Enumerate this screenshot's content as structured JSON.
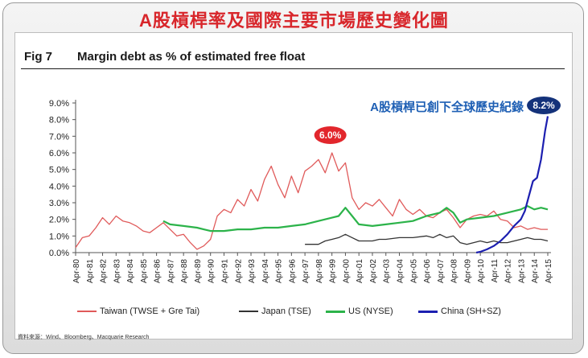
{
  "header": {
    "title": "A股槓桿率及國際主要市場歷史變化圖"
  },
  "figure": {
    "label": "Fig 7",
    "title": "Margin debt as % of estimated free float"
  },
  "source": "資料來源：Wind、Bloomberg、Macquarie Research",
  "annotations": {
    "china_note": "A股槓桿已創下全球歷史紀錄",
    "taiwan_peak": "6.0%",
    "china_peak": "8.2%"
  },
  "colors": {
    "taiwan": "#e05a5a",
    "japan": "#333333",
    "us": "#2cb34a",
    "china": "#1c1fb0",
    "title_red": "#d8262b",
    "note_blue": "#1e5fb4"
  },
  "chart_data": {
    "type": "line",
    "title": "Margin debt as % of estimated free float",
    "ylim": [
      0,
      9
    ],
    "yticks": [
      "0.0%",
      "1.0%",
      "2.0%",
      "3.0%",
      "4.0%",
      "5.0%",
      "6.0%",
      "7.0%",
      "8.0%",
      "9.0%"
    ],
    "x_categories": [
      "Apr-80",
      "Apr-81",
      "Apr-82",
      "Apr-83",
      "Apr-84",
      "Apr-85",
      "Apr-86",
      "Apr-87",
      "Apr-88",
      "Apr-89",
      "Apr-90",
      "Apr-91",
      "Apr-92",
      "Apr-93",
      "Apr-94",
      "Apr-95",
      "Apr-96",
      "Apr-97",
      "Apr-98",
      "Apr-99",
      "Apr-00",
      "Apr-01",
      "Apr-02",
      "Apr-03",
      "Apr-04",
      "Apr-05",
      "Apr-06",
      "Apr-07",
      "Apr-08",
      "Apr-09",
      "Apr-10",
      "Apr-11",
      "Apr-12",
      "Apr-13",
      "Apr-14",
      "Apr-15"
    ],
    "legend_position": "bottom",
    "series": [
      {
        "name": "Taiwan (TWSE + Gre Tai)",
        "color": "#e05a5a",
        "points": [
          [
            0,
            0.3
          ],
          [
            0.5,
            0.9
          ],
          [
            1,
            1.0
          ],
          [
            1.5,
            1.5
          ],
          [
            2,
            2.1
          ],
          [
            2.5,
            1.7
          ],
          [
            3,
            2.2
          ],
          [
            3.5,
            1.9
          ],
          [
            4,
            1.8
          ],
          [
            4.5,
            1.6
          ],
          [
            5,
            1.3
          ],
          [
            5.5,
            1.2
          ],
          [
            6,
            1.5
          ],
          [
            6.5,
            1.8
          ],
          [
            7,
            1.4
          ],
          [
            7.5,
            1.0
          ],
          [
            8,
            1.1
          ],
          [
            8.5,
            0.6
          ],
          [
            9,
            0.2
          ],
          [
            9.5,
            0.4
          ],
          [
            10,
            0.8
          ],
          [
            10.5,
            2.2
          ],
          [
            11,
            2.6
          ],
          [
            11.5,
            2.4
          ],
          [
            12,
            3.2
          ],
          [
            12.5,
            2.8
          ],
          [
            13,
            3.8
          ],
          [
            13.5,
            3.1
          ],
          [
            14,
            4.4
          ],
          [
            14.5,
            5.2
          ],
          [
            15,
            4.1
          ],
          [
            15.5,
            3.3
          ],
          [
            16,
            4.6
          ],
          [
            16.5,
            3.6
          ],
          [
            17,
            4.9
          ],
          [
            17.5,
            5.2
          ],
          [
            18,
            5.6
          ],
          [
            18.5,
            4.8
          ],
          [
            19,
            6.0
          ],
          [
            19.5,
            4.9
          ],
          [
            20,
            5.4
          ],
          [
            20.5,
            3.3
          ],
          [
            21,
            2.6
          ],
          [
            21.5,
            3.0
          ],
          [
            22,
            2.8
          ],
          [
            22.5,
            3.2
          ],
          [
            23,
            2.7
          ],
          [
            23.5,
            2.2
          ],
          [
            24,
            3.2
          ],
          [
            24.5,
            2.6
          ],
          [
            25,
            2.3
          ],
          [
            25.5,
            2.6
          ],
          [
            26,
            2.2
          ],
          [
            26.5,
            2.1
          ],
          [
            27,
            2.4
          ],
          [
            27.5,
            2.6
          ],
          [
            28,
            2.1
          ],
          [
            28.5,
            1.5
          ],
          [
            29,
            2.0
          ],
          [
            29.5,
            2.2
          ],
          [
            30,
            2.3
          ],
          [
            30.5,
            2.2
          ],
          [
            31,
            2.5
          ],
          [
            31.5,
            2.0
          ],
          [
            32,
            1.9
          ],
          [
            32.5,
            1.5
          ],
          [
            33,
            1.6
          ],
          [
            33.5,
            1.4
          ],
          [
            34,
            1.5
          ],
          [
            34.5,
            1.4
          ],
          [
            35,
            1.4
          ]
        ]
      },
      {
        "name": "Japan (TSE)",
        "color": "#333333",
        "points": [
          [
            17,
            0.5
          ],
          [
            18,
            0.5
          ],
          [
            18.5,
            0.7
          ],
          [
            19,
            0.8
          ],
          [
            19.5,
            0.9
          ],
          [
            20,
            1.1
          ],
          [
            20.5,
            0.9
          ],
          [
            21,
            0.7
          ],
          [
            22,
            0.7
          ],
          [
            22.5,
            0.8
          ],
          [
            23,
            0.8
          ],
          [
            24,
            0.9
          ],
          [
            25,
            0.9
          ],
          [
            26,
            1.0
          ],
          [
            26.5,
            0.9
          ],
          [
            27,
            1.1
          ],
          [
            27.5,
            0.9
          ],
          [
            28,
            1.0
          ],
          [
            28.5,
            0.6
          ],
          [
            29,
            0.5
          ],
          [
            29.5,
            0.6
          ],
          [
            30,
            0.7
          ],
          [
            30.5,
            0.6
          ],
          [
            31,
            0.7
          ],
          [
            31.5,
            0.6
          ],
          [
            32,
            0.6
          ],
          [
            33,
            0.8
          ],
          [
            33.5,
            0.9
          ],
          [
            34,
            0.8
          ],
          [
            34.5,
            0.8
          ],
          [
            35,
            0.7
          ]
        ]
      },
      {
        "name": "US (NYSE)",
        "color": "#2cb34a",
        "points": [
          [
            6.5,
            1.9
          ],
          [
            7,
            1.7
          ],
          [
            8,
            1.6
          ],
          [
            9,
            1.5
          ],
          [
            10,
            1.3
          ],
          [
            11,
            1.3
          ],
          [
            12,
            1.4
          ],
          [
            13,
            1.4
          ],
          [
            14,
            1.5
          ],
          [
            15,
            1.5
          ],
          [
            16,
            1.6
          ],
          [
            17,
            1.7
          ],
          [
            18,
            1.9
          ],
          [
            19,
            2.1
          ],
          [
            19.5,
            2.2
          ],
          [
            20,
            2.7
          ],
          [
            20.5,
            2.2
          ],
          [
            21,
            1.7
          ],
          [
            22,
            1.6
          ],
          [
            23,
            1.7
          ],
          [
            24,
            1.8
          ],
          [
            25,
            1.9
          ],
          [
            26,
            2.2
          ],
          [
            27,
            2.4
          ],
          [
            27.5,
            2.7
          ],
          [
            28,
            2.4
          ],
          [
            28.5,
            1.8
          ],
          [
            29,
            2.0
          ],
          [
            30,
            2.1
          ],
          [
            31,
            2.2
          ],
          [
            32,
            2.4
          ],
          [
            33,
            2.6
          ],
          [
            33.5,
            2.8
          ],
          [
            34,
            2.6
          ],
          [
            34.5,
            2.7
          ],
          [
            35,
            2.6
          ]
        ]
      },
      {
        "name": "China (SH+SZ)",
        "color": "#1c1fb0",
        "points": [
          [
            29.7,
            0.0
          ],
          [
            30,
            0.05
          ],
          [
            30.5,
            0.2
          ],
          [
            31,
            0.4
          ],
          [
            31.5,
            0.7
          ],
          [
            32,
            1.1
          ],
          [
            32.5,
            1.6
          ],
          [
            33,
            2.0
          ],
          [
            33.3,
            2.5
          ],
          [
            33.6,
            3.4
          ],
          [
            33.9,
            4.3
          ],
          [
            34.2,
            4.5
          ],
          [
            34.5,
            5.6
          ],
          [
            34.8,
            7.3
          ],
          [
            35,
            8.2
          ]
        ]
      }
    ]
  }
}
